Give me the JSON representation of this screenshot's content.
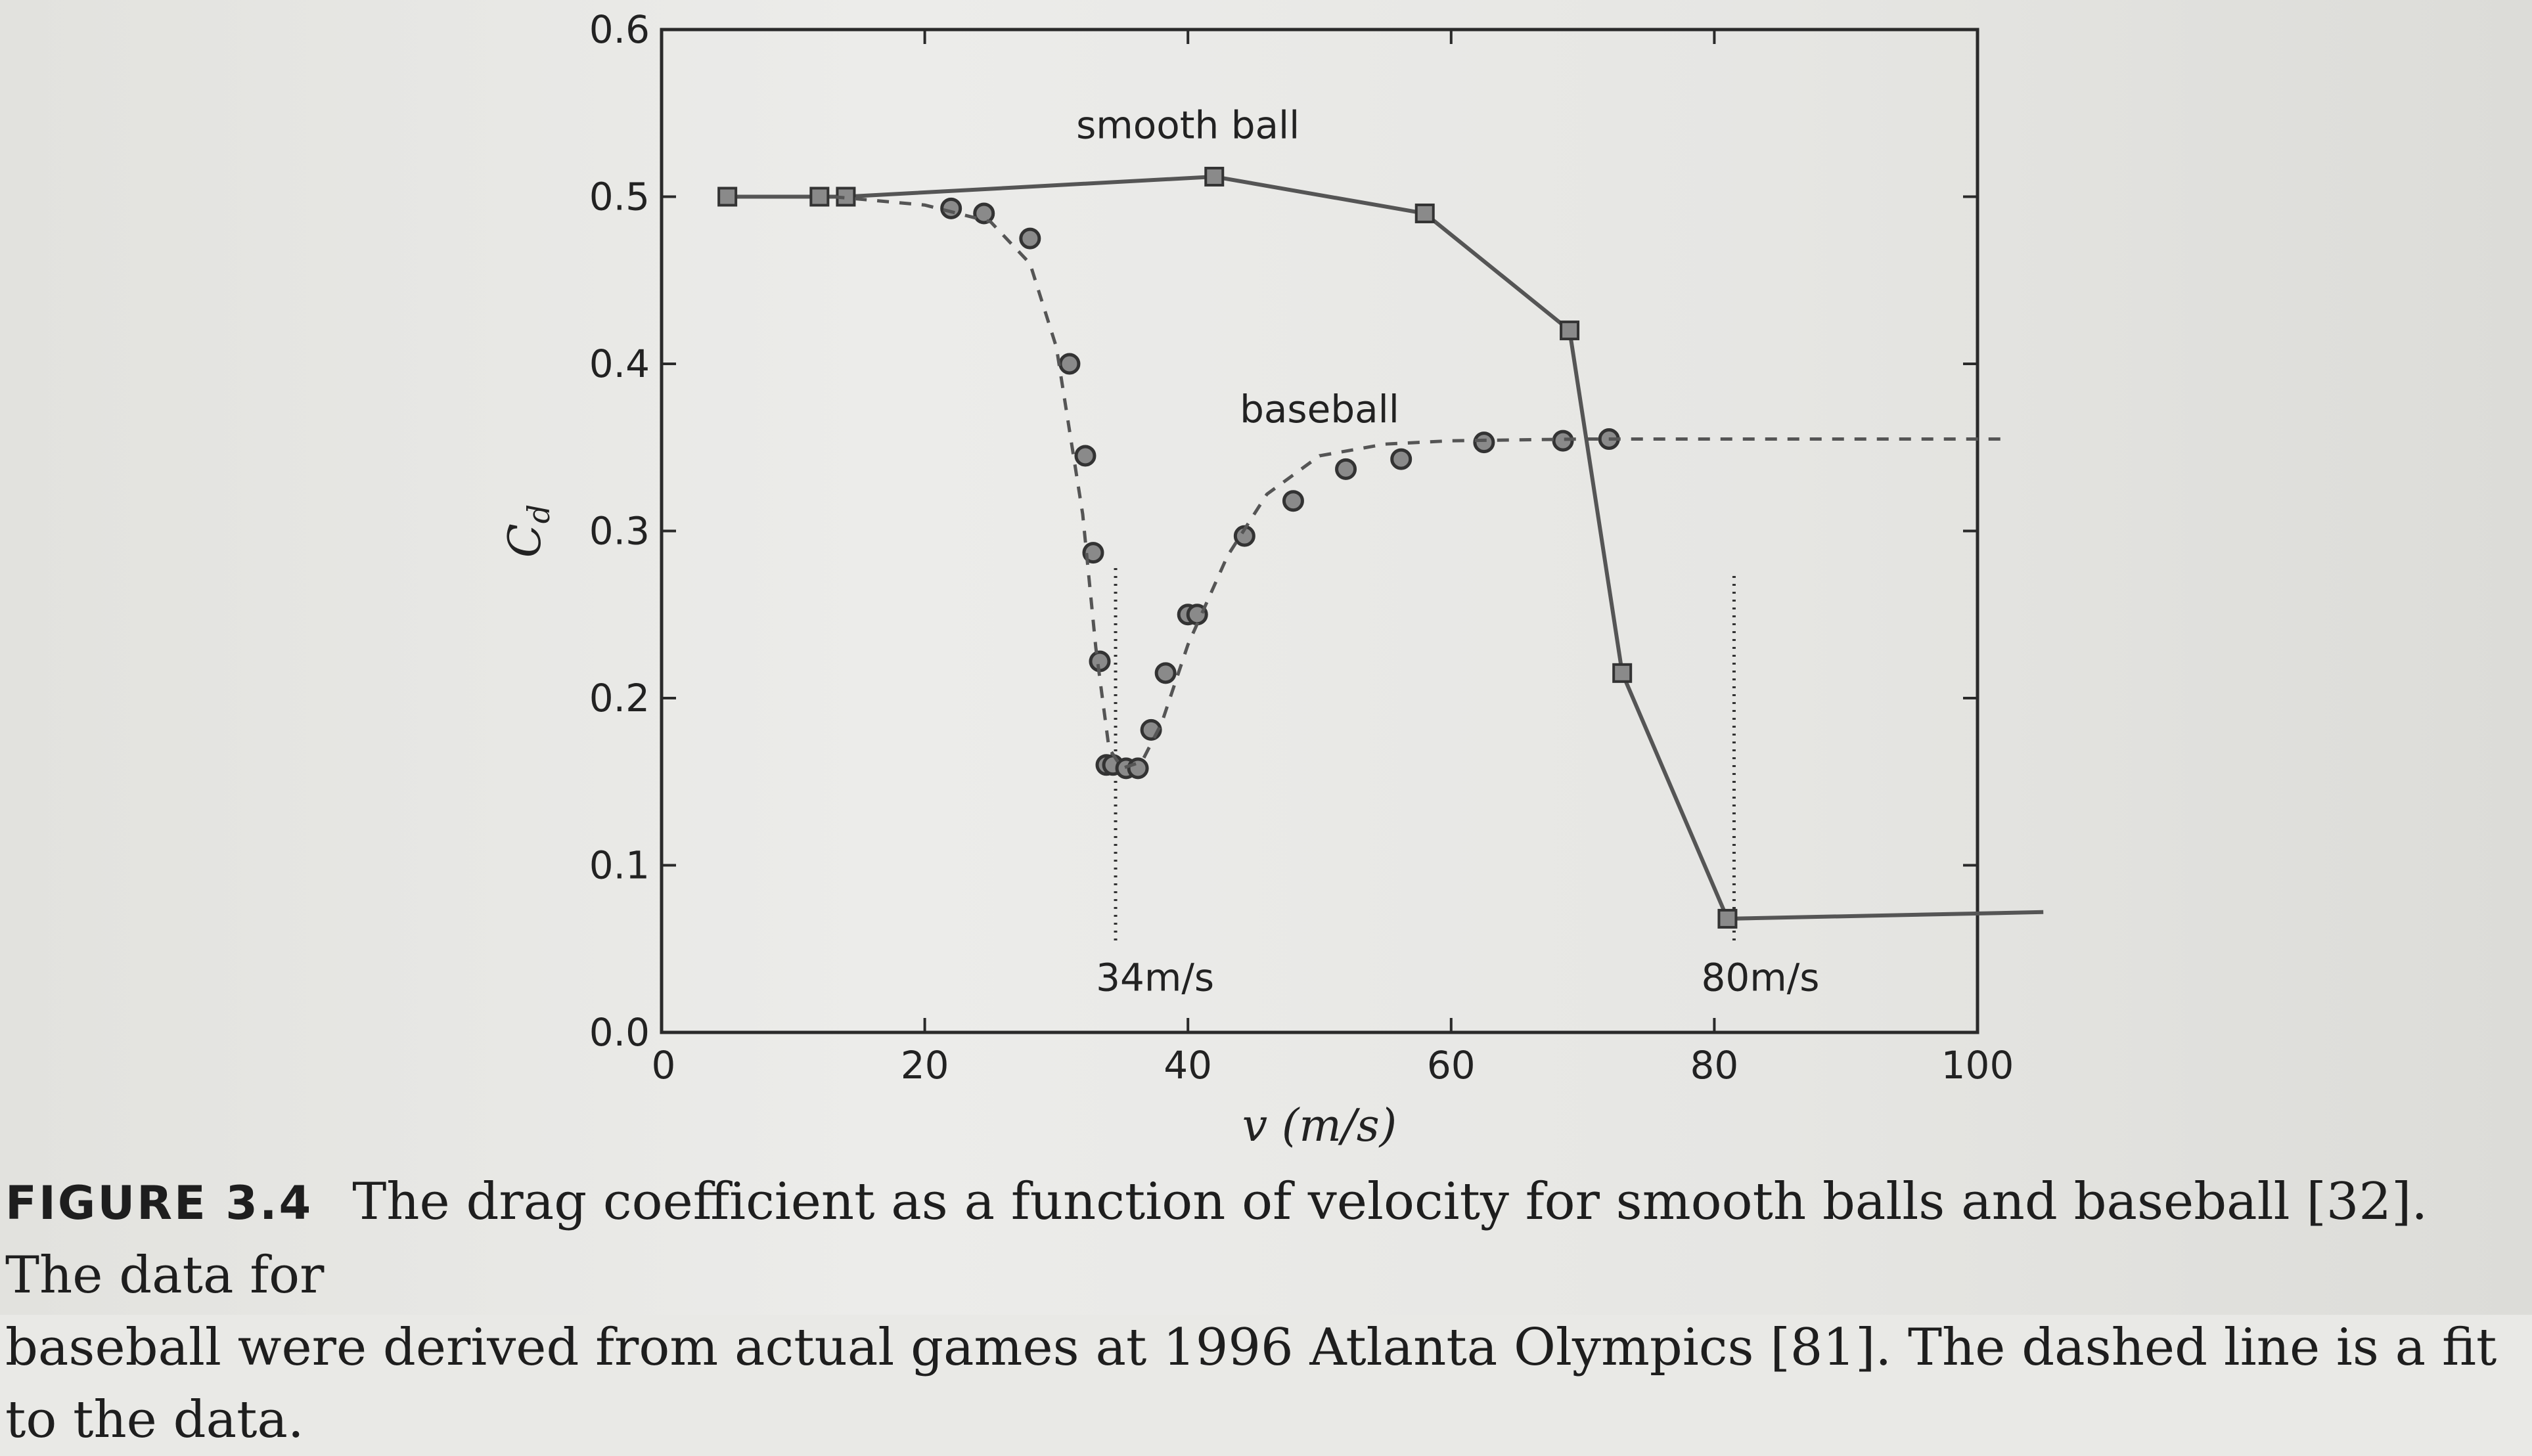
{
  "chart_data": {
    "type": "line",
    "xlabel": "v (m/s)",
    "ylabel": "C_d",
    "ylabel_main": "C",
    "ylabel_sub": "d",
    "xlim": [
      0,
      100
    ],
    "ylim": [
      0.0,
      0.6
    ],
    "x_ticks": [
      0,
      20,
      40,
      60,
      80,
      100
    ],
    "y_ticks": [
      0.0,
      0.1,
      0.2,
      0.3,
      0.4,
      0.5,
      0.6
    ],
    "x_tick_labels": [
      "0",
      "20",
      "40",
      "60",
      "80",
      "100"
    ],
    "y_tick_labels": [
      "0.0",
      "0.1",
      "0.2",
      "0.3",
      "0.4",
      "0.5",
      "0.6"
    ],
    "grid": false,
    "series": [
      {
        "name": "smooth ball",
        "style": "solid line with square markers",
        "color": "#555555",
        "x": [
          5,
          12,
          14,
          42,
          58,
          69,
          73,
          81,
          105
        ],
        "y": [
          0.5,
          0.5,
          0.5,
          0.512,
          0.49,
          0.42,
          0.215,
          0.068,
          0.072
        ]
      },
      {
        "name": "baseball",
        "style": "circle markers (data)",
        "color": "#555555",
        "x": [
          22,
          24.5,
          28,
          31,
          32.2,
          32.8,
          33.3,
          33.8,
          34.3,
          35.3,
          36.2,
          37.2,
          38.3,
          40,
          40.7,
          44.3,
          48,
          52,
          56.2,
          62.5,
          68.5,
          72
        ],
        "y": [
          0.493,
          0.49,
          0.475,
          0.4,
          0.345,
          0.287,
          0.222,
          0.16,
          0.16,
          0.158,
          0.158,
          0.181,
          0.215,
          0.25,
          0.25,
          0.297,
          0.318,
          0.337,
          0.343,
          0.353,
          0.354,
          0.355
        ]
      },
      {
        "name": "fit",
        "style": "dashed line",
        "color": "#555555",
        "x": [
          13,
          20,
          25,
          28,
          30,
          32,
          33,
          34,
          35,
          36.5,
          38,
          40,
          43,
          46,
          50,
          55,
          60,
          70,
          80,
          90,
          102
        ],
        "y": [
          0.5,
          0.495,
          0.485,
          0.46,
          0.41,
          0.31,
          0.23,
          0.17,
          0.158,
          0.162,
          0.185,
          0.232,
          0.285,
          0.322,
          0.345,
          0.352,
          0.354,
          0.355,
          0.355,
          0.355,
          0.355
        ]
      }
    ],
    "annotations": [
      {
        "text": "smooth ball",
        "x": 40,
        "y": 0.535
      },
      {
        "text": "baseball",
        "x": 50,
        "y": 0.365
      },
      {
        "text": "34m/s",
        "x": 37.5,
        "y": 0.025
      },
      {
        "text": "80m/s",
        "x": 83.5,
        "y": 0.025
      }
    ],
    "reference_lines": [
      {
        "x": 34.5,
        "y_from": 0.055,
        "y_to": 0.28,
        "style": "dotted"
      },
      {
        "x": 81.5,
        "y_from": 0.055,
        "y_to": 0.275,
        "style": "dotted"
      }
    ]
  },
  "caption": {
    "label": "FIGURE 3.4",
    "line1": "The drag coefficient as a function of velocity for smooth balls and baseball [32]. The data for",
    "line2": "baseball were derived from actual games at 1996 Atlanta Olympics [81]. The dashed line is a fit to the data."
  }
}
